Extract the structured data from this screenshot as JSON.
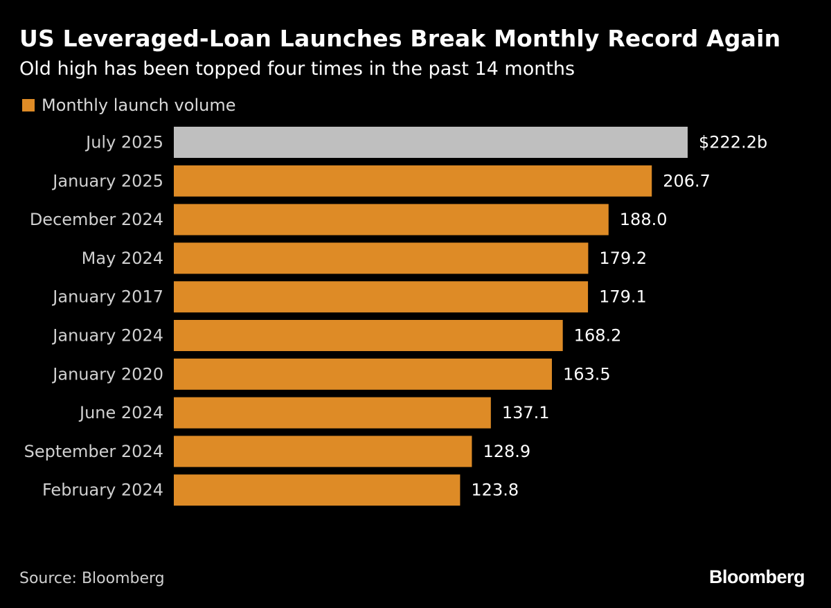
{
  "title": "US Leveraged-Loan Launches Break Monthly Record Again",
  "subtitle": "Old high has been topped four times in the past 14 months",
  "legend": {
    "label": "Monthly launch volume",
    "color": "#de8b26"
  },
  "source": "Source: Bloomberg",
  "brand": "Bloomberg",
  "colors": {
    "bar": "#de8b26",
    "highlight": "#bfbfbf",
    "background": "#000000"
  },
  "chart_data": {
    "type": "bar",
    "orientation": "horizontal",
    "categories": [
      "July 2025",
      "January 2025",
      "December 2024",
      "May 2024",
      "January 2017",
      "January 2024",
      "January 2020",
      "June 2024",
      "September 2024",
      "February 2024"
    ],
    "values": [
      222.2,
      206.7,
      188.0,
      179.2,
      179.1,
      168.2,
      163.5,
      137.1,
      128.9,
      123.8
    ],
    "value_labels": [
      "$222.2b",
      "206.7",
      "188.0",
      "179.2",
      "179.1",
      "168.2",
      "163.5",
      "137.1",
      "128.9",
      "123.8"
    ],
    "highlight_index": 0,
    "series": [
      {
        "name": "Monthly launch volume",
        "values": [
          222.2,
          206.7,
          188.0,
          179.2,
          179.1,
          168.2,
          163.5,
          137.1,
          128.9,
          123.8
        ]
      }
    ],
    "xlim": [
      0,
      222.2
    ],
    "grid": false,
    "legend_position": "top-left"
  }
}
